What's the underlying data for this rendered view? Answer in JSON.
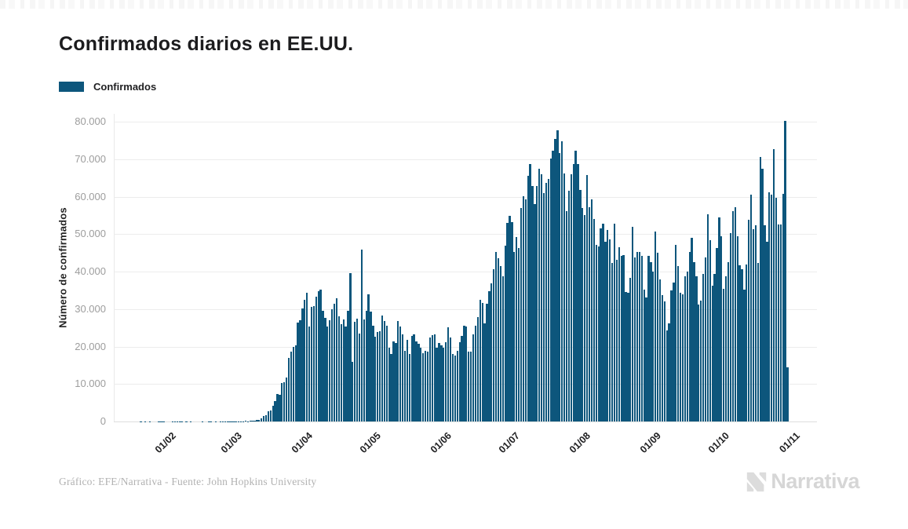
{
  "title": "Confirmados diarios en EE.UU.",
  "legend": {
    "label": "Confirmados",
    "color": "#0d567c"
  },
  "footer": {
    "credit": "Gráfico: EFE/Narrativa - Fuente: John Hopkins University",
    "brand": "Narrativa"
  },
  "chart_data": {
    "type": "bar",
    "title": "Confirmados diarios en EE.UU.",
    "xlabel": "",
    "ylabel": "Número de confirmados",
    "ylim": [
      0,
      80000
    ],
    "grid": true,
    "legend_position": "top-left",
    "bar_color": "#0d567c",
    "background": "#ffffff",
    "y_ticks": [
      {
        "value": 0,
        "label": "0"
      },
      {
        "value": 10000,
        "label": "10.000"
      },
      {
        "value": 20000,
        "label": "20.000"
      },
      {
        "value": 30000,
        "label": "30.000"
      },
      {
        "value": 40000,
        "label": "40.000"
      },
      {
        "value": 50000,
        "label": "50.000"
      },
      {
        "value": 60000,
        "label": "60.000"
      },
      {
        "value": 70000,
        "label": "70.000"
      },
      {
        "value": 80000,
        "label": "80.000"
      }
    ],
    "x_ticks": [
      {
        "day_index": 10,
        "label": "01/02"
      },
      {
        "day_index": 39,
        "label": "01/03"
      },
      {
        "day_index": 70,
        "label": "01/04"
      },
      {
        "day_index": 100,
        "label": "01/05"
      },
      {
        "day_index": 131,
        "label": "01/06"
      },
      {
        "day_index": 161,
        "label": "01/07"
      },
      {
        "day_index": 192,
        "label": "01/08"
      },
      {
        "day_index": 223,
        "label": "01/09"
      },
      {
        "day_index": 253,
        "label": "01/10"
      },
      {
        "day_index": 284,
        "label": "01/11"
      }
    ],
    "series": [
      {
        "name": "Confirmados",
        "frequency": "daily",
        "values": [
          1,
          0,
          1,
          0,
          3,
          0,
          0,
          0,
          2,
          3,
          1,
          0,
          0,
          0,
          8,
          6,
          1,
          1,
          2,
          0,
          2,
          0,
          2,
          0,
          0,
          0,
          0,
          1,
          0,
          0,
          18,
          1,
          0,
          19,
          0,
          18,
          7,
          24,
          21,
          27,
          24,
          34,
          22,
          67,
          65,
          95,
          121,
          77,
          131,
          211,
          287,
          351,
          511,
          777,
          1561,
          1715,
          2805,
          2988,
          4290,
          5363,
          7402,
          7123,
          10189,
          10410,
          11656,
          16893,
          18695,
          19979,
          20352,
          26365,
          27103,
          30082,
          32425,
          34272,
          25400,
          30561,
          30818,
          33323,
          34739,
          35098,
          29468,
          27620,
          25306,
          26930,
          30003,
          31451,
          32922,
          28123,
          25995,
          27192,
          25409,
          29468,
          39500,
          16000,
          26500,
          27500,
          23500,
          45800,
          27327,
          29517,
          34000,
          29288,
          25524,
          22593,
          23841,
          24128,
          28369,
          26906,
          25621,
          19731,
          18117,
          21467,
          20869,
          26733,
          25306,
          23290,
          18873,
          21841,
          18106,
          22782,
          23208,
          21326,
          20719,
          19680,
          18132,
          18914,
          18721,
          22413,
          23037,
          23290,
          19790,
          21000,
          20400,
          19699,
          21140,
          25176,
          22317,
          17919,
          17598,
          18881,
          21148,
          22834,
          25628,
          25288,
          18679,
          18577,
          23296,
          25555,
          27762,
          32411,
          31672,
          26079,
          31496,
          34700,
          36823,
          40527,
          45255,
          43581,
          41390,
          38672,
          46840,
          52898,
          54771,
          53213,
          45300,
          49199,
          46329,
          57000,
          60021,
          59260,
          65551,
          68711,
          62918,
          58114,
          62886,
          67417,
          66000,
          61000,
          63698,
          64664,
          70106,
          72219,
          75500,
          77600,
          71558,
          74818,
          66281,
          56130,
          61611,
          65935,
          68673,
          72300,
          68700,
          61800,
          57000,
          55000,
          65800,
          57120,
          59230,
          54139,
          47111,
          46754,
          51514,
          52799,
          48000,
          51000,
          48693,
          42219,
          52800,
          43249,
          46519,
          44091,
          44354,
          34567,
          34437,
          38395,
          52000,
          43725,
          45341,
          45207,
          44110,
          35133,
          33000,
          44112,
          42597,
          40000,
          50702,
          45000,
          38000,
          33733,
          32089,
          24257,
          26086,
          34879,
          37022,
          47146,
          41571,
          34317,
          33871,
          38771,
          40021,
          45281,
          49076,
          42484,
          38709,
          31301,
          32169,
          39281,
          43787,
          55218,
          48345,
          36239,
          39455,
          46319,
          54349,
          49337,
          35406,
          38839,
          42576,
          50353,
          56167,
          57208,
          49437,
          41653,
          40600,
          35200,
          41900,
          53800,
          60500,
          51300,
          52400,
          42300,
          70600,
          67400,
          52400,
          48000,
          61200,
          60500,
          72700,
          59700,
          52600,
          52600,
          60700,
          80300,
          14500
        ]
      }
    ]
  }
}
